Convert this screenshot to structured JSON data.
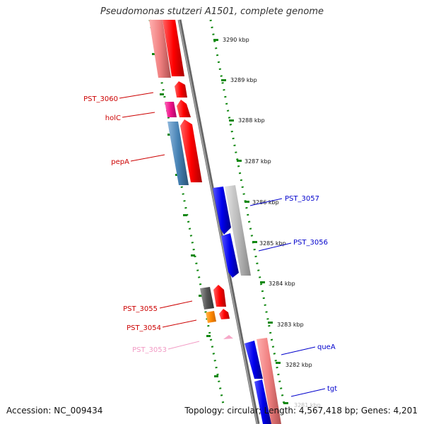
{
  "title": "Pseudomonas stutzeri A1501, complete genome",
  "footer": {
    "accession": "Accession: NC_009434",
    "summary": "Topology: circular; Length: 4,567,418 bp; Genes: 4,201"
  },
  "scale": {
    "unit": "kbp",
    "ticks": [
      "3290 kbp",
      "3289 kbp",
      "3288 kbp",
      "3287 kbp",
      "3286 kbp",
      "3285 kbp",
      "3284 kbp",
      "3283 kbp",
      "3282 kbp",
      "3281 kbp"
    ]
  },
  "genes": {
    "left": [
      {
        "label": "PST_3060",
        "color": "#cc0000"
      },
      {
        "label": "holC",
        "color": "#cc0000"
      },
      {
        "label": "pepA",
        "color": "#cc0000"
      },
      {
        "label": "PST_3055",
        "color": "#cc0000"
      },
      {
        "label": "PST_3054",
        "color": "#cc0000"
      },
      {
        "label": "PST_3053",
        "color": "#f29ac4"
      }
    ],
    "right": [
      {
        "label": "PST_3057",
        "color": "#0000cc"
      },
      {
        "label": "PST_3056",
        "color": "#0000cc"
      },
      {
        "label": "queA",
        "color": "#0000cc"
      },
      {
        "label": "tgt",
        "color": "#0000cc"
      }
    ]
  },
  "colors": {
    "forward_strand": "#ff0000",
    "reverse_strand": "#0000ee",
    "cds_pink": "#f08080",
    "cds_magenta": "#ee1188",
    "cds_steelblue": "#4682b4",
    "cds_gray": "#bbbbbb",
    "cds_darkgray": "#555555",
    "cds_orange": "#ff8800",
    "backbone": "#777777",
    "grid_dots": "#118811"
  }
}
